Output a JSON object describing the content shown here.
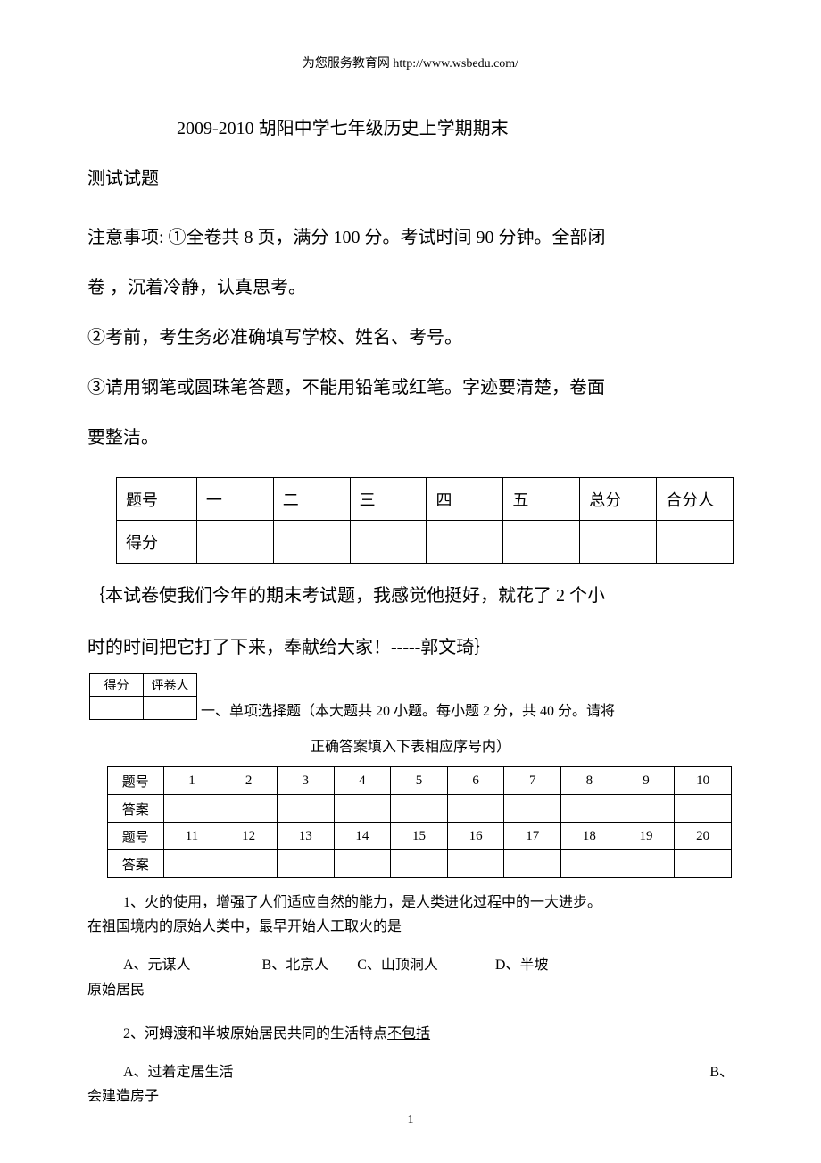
{
  "header": "为您服务教育网 http://www.wsbedu.com/",
  "title_line1": "2009-2010 胡阳中学七年级历史上学期期末",
  "title_line2": "测试试题",
  "notice_lead": "注意事项: ①全卷共 8 页，满分 100 分。考试时间 90 分钟。全部闭",
  "notice_lead2": "卷 ，沉着冷静，认真思考。",
  "notice2": "②考前，考生务必准确填写学校、姓名、考号。",
  "notice3a": "③请用钢笔或圆珠笔答题，不能用铅笔或红笔。字迹要清楚，卷面",
  "notice3b": "要整洁。",
  "score_table": {
    "row1": [
      "题号",
      "一",
      "二",
      "三",
      "四",
      "五",
      "总分",
      "合分人"
    ],
    "row2_label": "得分"
  },
  "note1": "｛本试卷使我们今年的期末考试题，我感觉他挺好，就花了 2 个小",
  "note2": "时的时间把它打了下来，奉献给大家！-----郭文琦｝",
  "mini": {
    "c1": "得分",
    "c2": "评卷人"
  },
  "section1_a": "一、单项选择题（本大题共 20 小题。每小题 2 分，共 40 分。请将",
  "section1_b": "正确答案填入下表相应序号内）",
  "answer_table": {
    "r1": [
      "题号",
      "1",
      "2",
      "3",
      "4",
      "5",
      "6",
      "7",
      "8",
      "9",
      "10"
    ],
    "r2_label": "答案",
    "r3": [
      "题号",
      "11",
      "12",
      "13",
      "14",
      "15",
      "16",
      "17",
      "18",
      "19",
      "20"
    ],
    "r4_label": "答案"
  },
  "q1a": "1、火的使用，增强了人们适应自然的能力，是人类进化过程中的一大进步。",
  "q1b": "在祖国境内的原始人类中，最早开始人工取火的是",
  "q1_opts_a": "A、元谋人     B、北京人  C、山顶洞人    D、半坡",
  "q1_opts_b": "原始居民",
  "q2": "2、河姆渡和半坡原始居民共同的生活特点",
  "q2_u": "不包括",
  "q2_optA": "A、过着定居生活",
  "q2_optB": "B、",
  "q2_optB2": "会建造房子",
  "page_number": "1"
}
